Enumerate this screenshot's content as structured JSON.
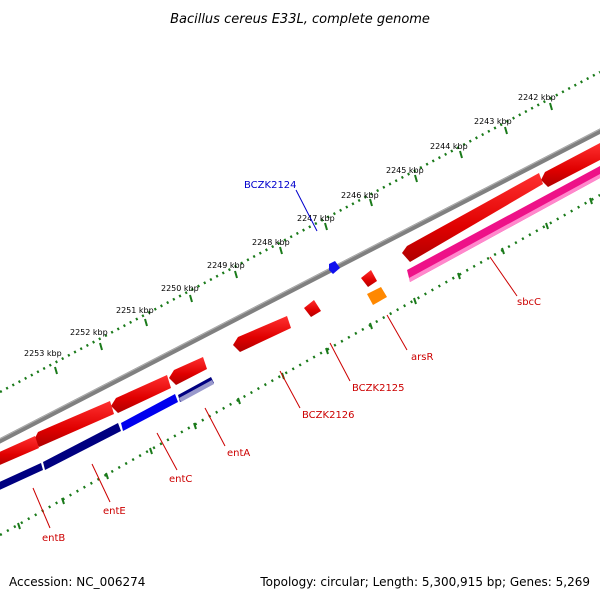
{
  "title": "Bacillus cereus E33L, complete genome",
  "footer": {
    "accession": "Accession: NC_006274",
    "summary": "Topology: circular; Length: 5,300,915 bp; Genes: 5,269"
  },
  "ruler": {
    "unit": "kbp",
    "ticks": [
      "2242 kbp",
      "2243 kbp",
      "2244 kbp",
      "2245 kbp",
      "2246 kbp",
      "2247 kbp",
      "2248 kbp",
      "2249 kbp",
      "2250 kbp",
      "2251 kbp",
      "2252 kbp",
      "2253 kbp"
    ]
  },
  "genes": [
    {
      "name": "BCZK2124",
      "strand": "forward",
      "color": "#0000cc"
    },
    {
      "name": "sbcC",
      "strand": "reverse",
      "color": "#cc0000"
    },
    {
      "name": "arsR",
      "strand": "reverse",
      "color": "#cc0000"
    },
    {
      "name": "BCZK2125",
      "strand": "reverse",
      "color": "#cc0000"
    },
    {
      "name": "BCZK2126",
      "strand": "reverse",
      "color": "#cc0000"
    },
    {
      "name": "entA",
      "strand": "reverse",
      "color": "#cc0000"
    },
    {
      "name": "entC",
      "strand": "reverse",
      "color": "#cc0000"
    },
    {
      "name": "entE",
      "strand": "reverse",
      "color": "#cc0000"
    },
    {
      "name": "entB",
      "strand": "reverse",
      "color": "#cc0000"
    }
  ],
  "colors": {
    "backbone": "#808080",
    "ticks": "#1a7a1a",
    "cds": "#ee0000",
    "rna_dark": "#000080",
    "rna_blue": "#0000ee",
    "pink": "#ee1188",
    "orange": "#ff8800",
    "label_red": "#cc0000",
    "label_blue": "#0000cc"
  }
}
